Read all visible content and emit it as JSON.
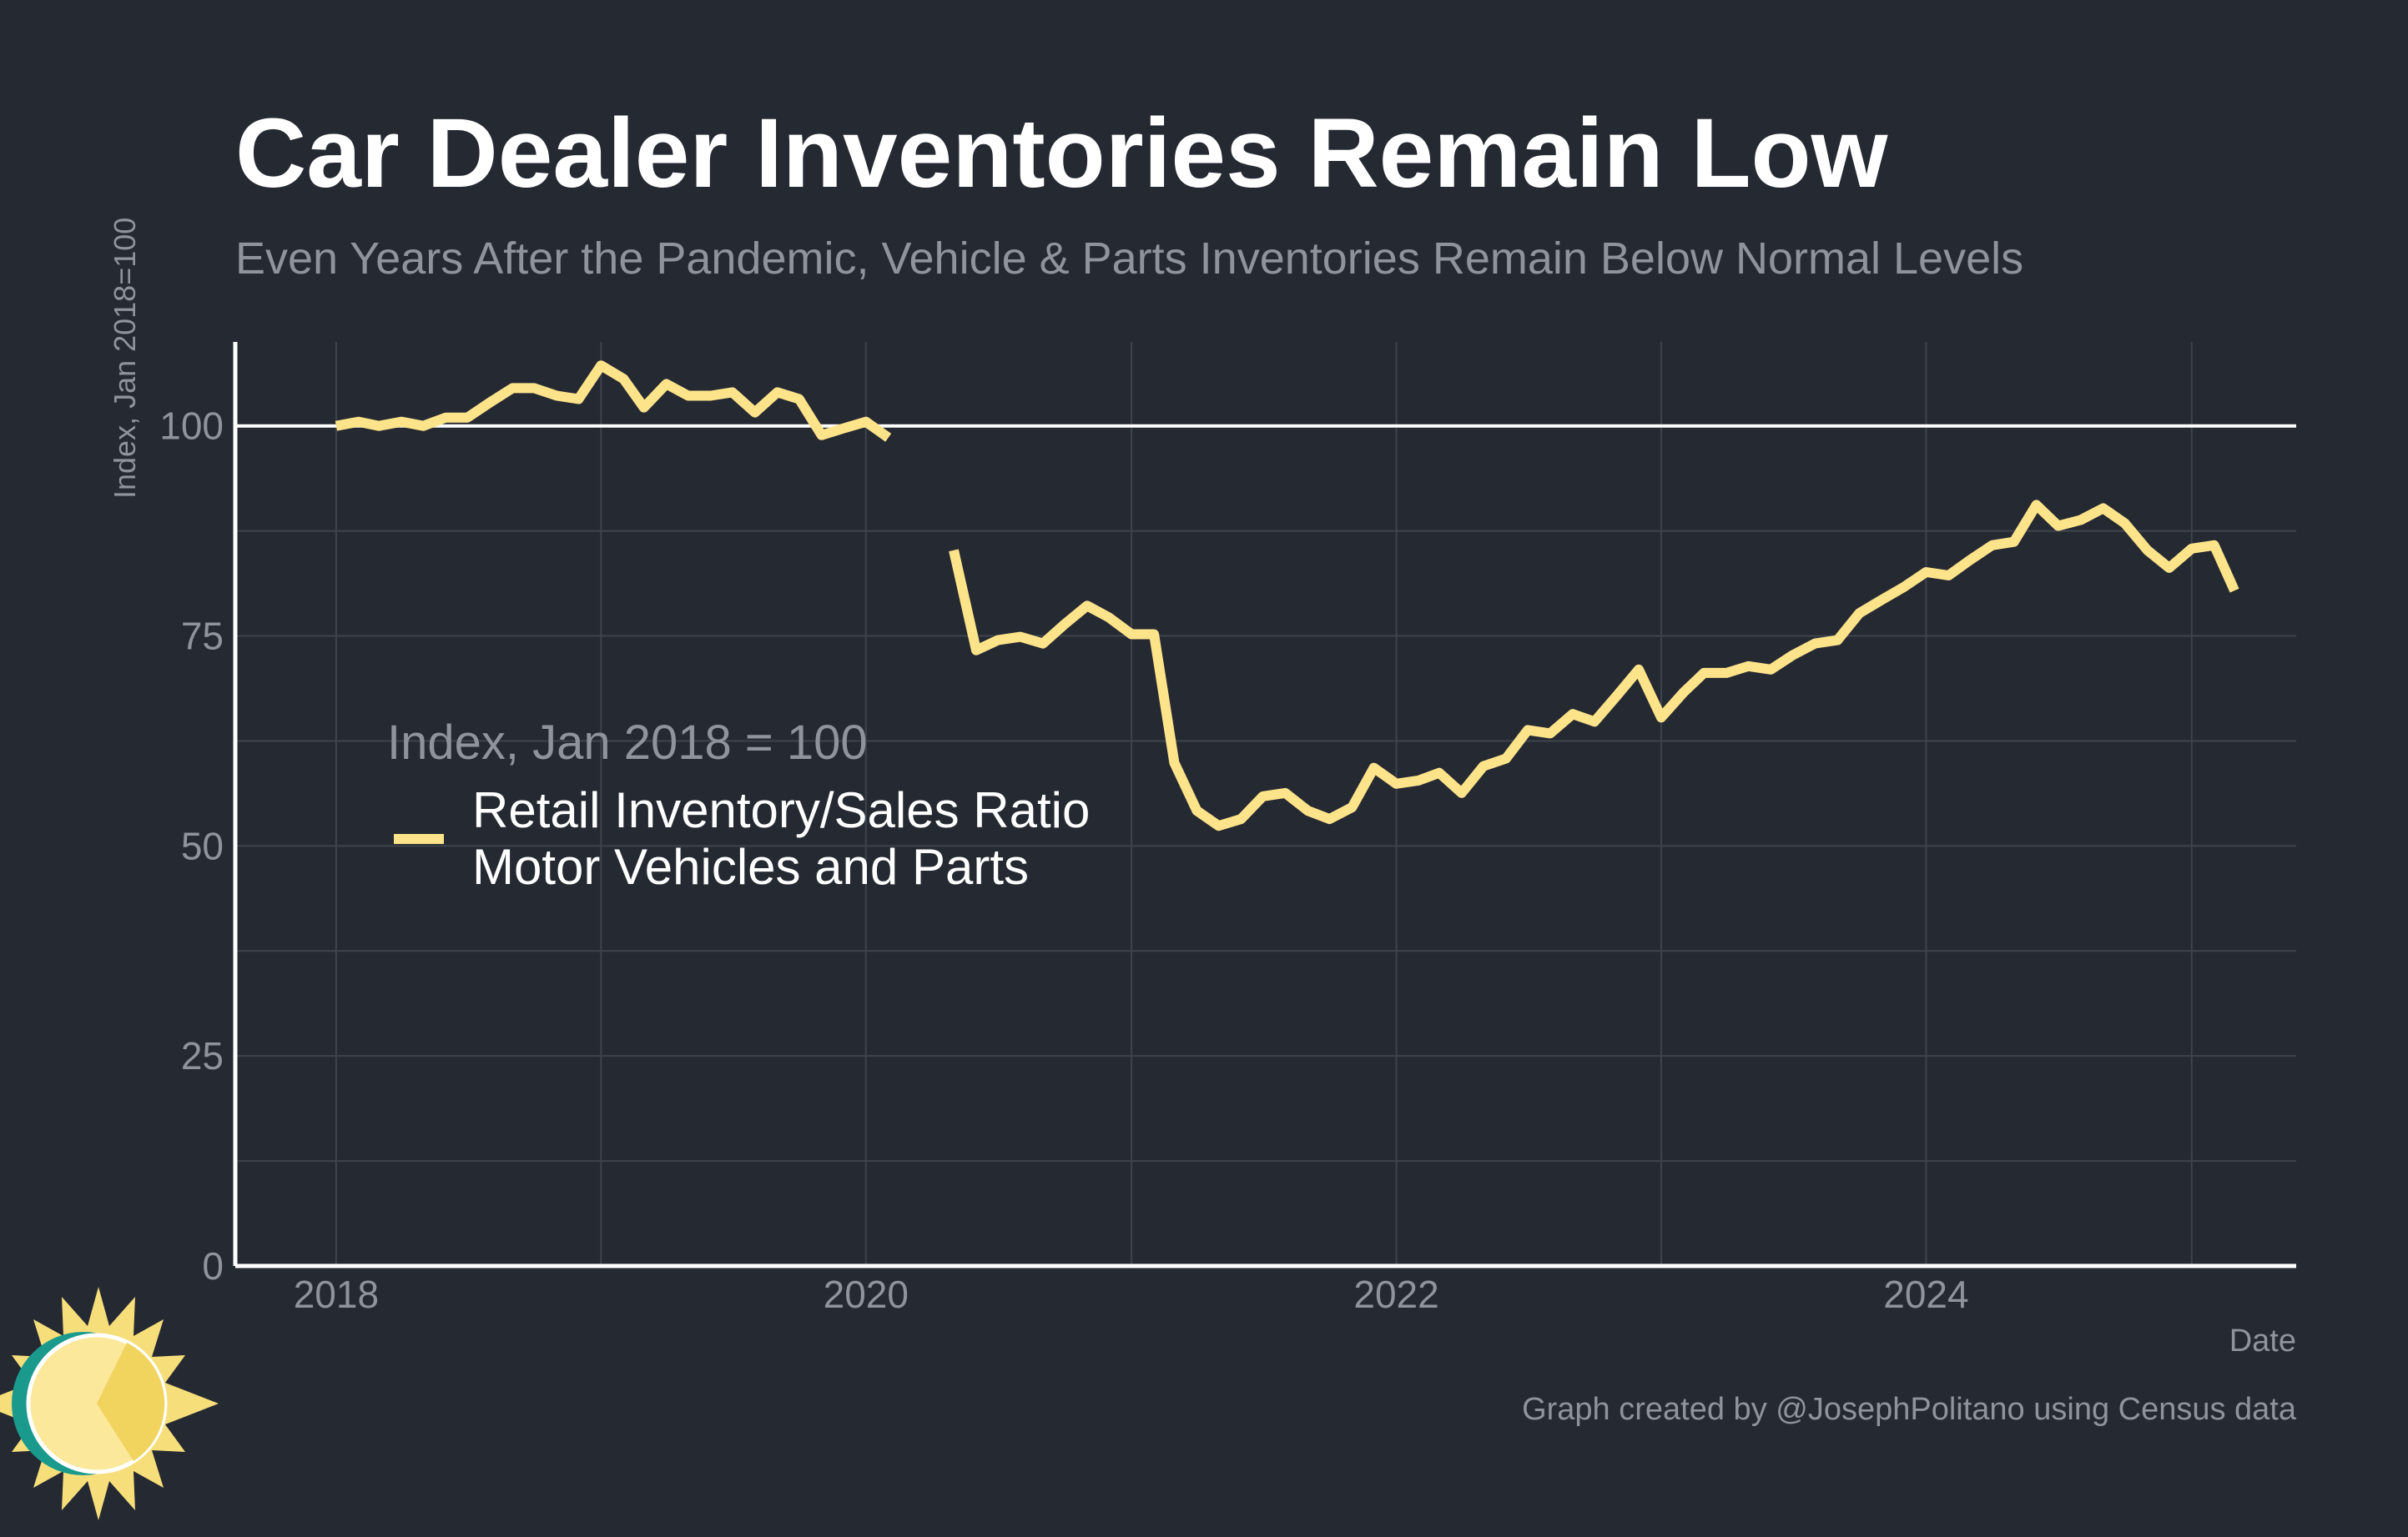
{
  "colors": {
    "background": "#252932",
    "grid": "#3e434c",
    "axis": "#ffffff",
    "reference_line": "#ffffff",
    "series": "#fde38a",
    "muted_text": "#8e939c",
    "logo_teal": "#1a9a8c",
    "logo_yellow": "#f6de7a",
    "logo_light": "#fbe89a"
  },
  "chart_data": {
    "type": "line",
    "title": "Car Dealer Inventories Remain Low",
    "subtitle": "Even Years After the Pandemic, Vehicle & Parts Inventories Remain Below Normal Levels",
    "xlabel": "Date",
    "ylabel": "Index, Jan 2018=100",
    "xlim": [
      "2017-08-15",
      "2025-05-25"
    ],
    "ylim": [
      0,
      110
    ],
    "x_ticks": [
      "2018",
      "2020",
      "2022",
      "2024"
    ],
    "y_ticks": [
      "0",
      "25",
      "50",
      "75",
      "100"
    ],
    "reference_line": 100,
    "grid": true,
    "legend": {
      "title": "Index, Jan 2018 = 100",
      "placement": "left-center",
      "entries": [
        "Retail Inventory/Sales Ratio",
        "Motor Vehicles and Parts"
      ]
    },
    "caption": "Graph created by @JosephPolitano using Census data",
    "series": [
      {
        "name": "Retail Inventory/Sales Ratio Motor Vehicles and Parts",
        "segments": [
          {
            "start": "2018-01",
            "values": [
              100,
              100.5,
              100,
              100.5,
              100,
              101,
              101,
              102.8,
              104.5,
              104.5,
              103.6,
              103.2,
              107.2,
              105.6,
              102.2,
              105,
              103.6,
              103.6,
              104,
              101.6,
              104,
              103.2,
              98.9,
              99.7,
              100.5,
              98.6
            ]
          },
          {
            "start": "2020-05",
            "values": [
              85.2,
              73.3,
              74.5,
              74.9,
              74.1,
              76.4,
              78.6,
              77.2,
              75.2,
              75.2,
              59.9,
              54.2,
              52.4,
              53.2,
              55.9,
              56.3,
              54.2,
              53.2,
              54.6,
              59.3,
              57.4,
              57.8,
              58.7,
              56.3,
              59.5,
              60.4,
              63.8,
              63.4,
              65.7,
              64.8,
              67.9,
              71,
              65.3,
              68.3,
              70.6,
              70.6,
              71.4,
              71,
              72.7,
              74.1,
              74.5,
              77.7,
              79.3,
              80.8,
              82.6,
              82.2,
              84,
              85.8,
              86.2,
              90.6,
              88.1,
              88.8,
              90.2,
              88.4,
              85.2,
              83.1,
              85.4,
              85.8,
              80.4
            ]
          }
        ]
      }
    ]
  }
}
